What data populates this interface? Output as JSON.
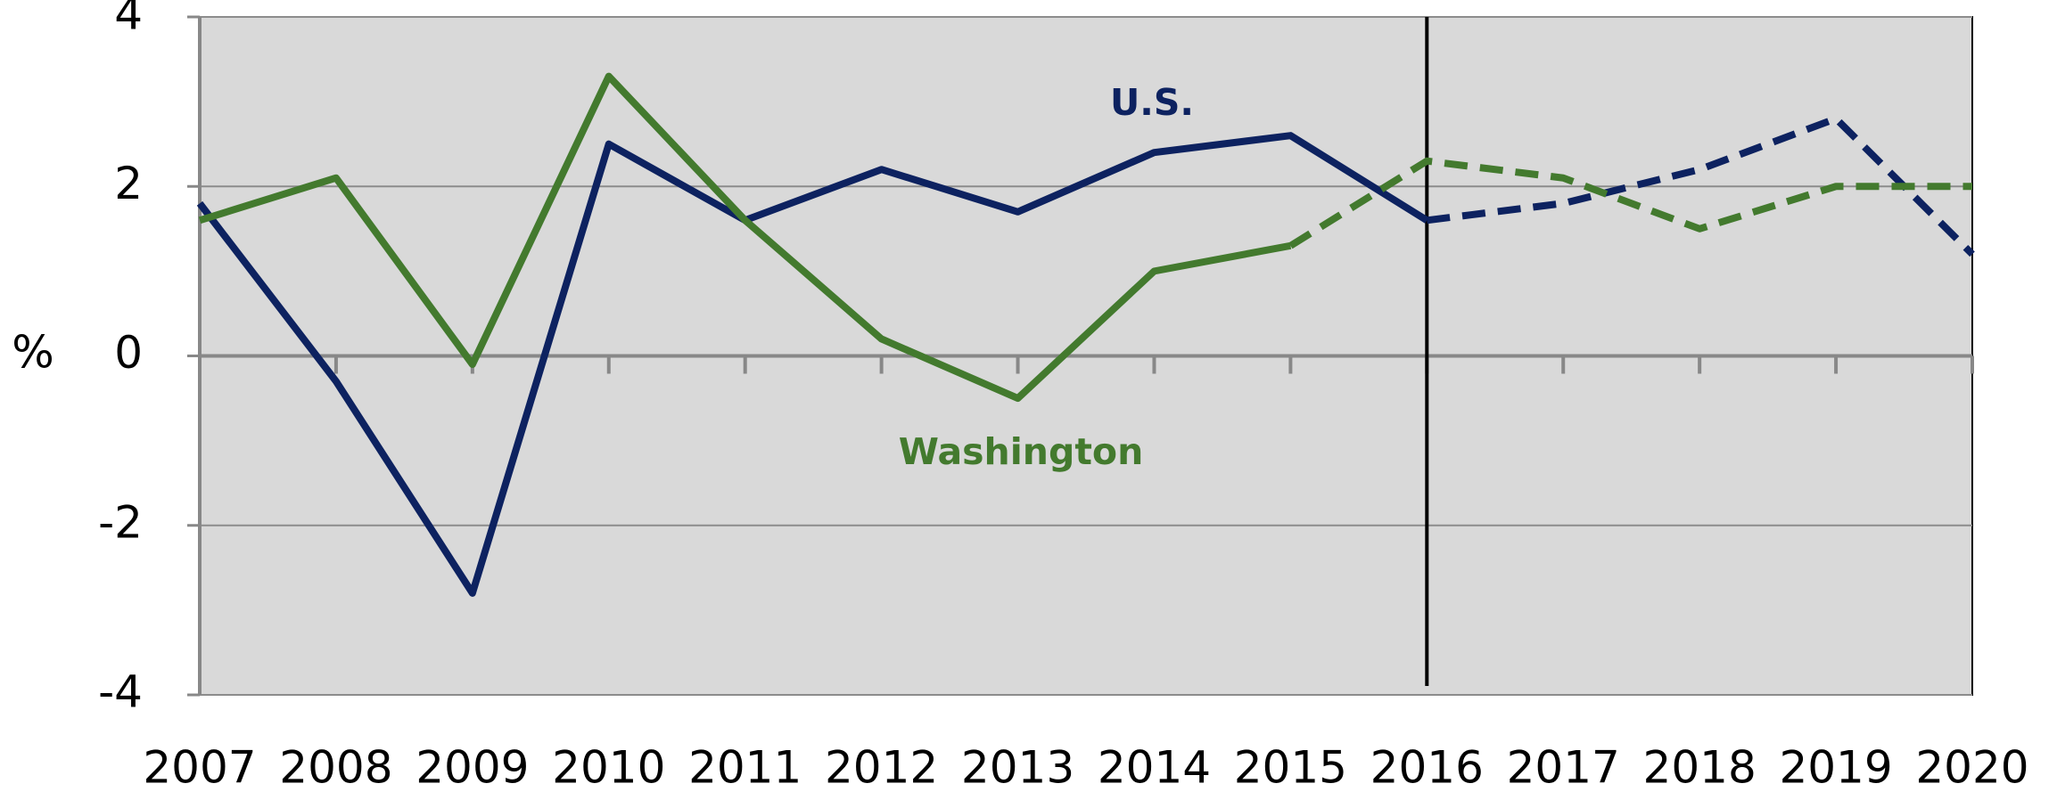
{
  "chart_data": {
    "type": "line",
    "categories": [
      "2007",
      "2008",
      "2009",
      "2010",
      "2011",
      "2012",
      "2013",
      "2014",
      "2015",
      "2016",
      "2017",
      "2018",
      "2019",
      "2020"
    ],
    "y_label": "%",
    "ylim": [
      -4,
      4
    ],
    "yticks": [
      -4,
      -2,
      0,
      2,
      4
    ],
    "grid": true,
    "divider": "2016",
    "series": [
      {
        "name": "U.S.",
        "color": "#0d2260",
        "dash_start": "2016",
        "values": [
          1.8,
          -0.3,
          -2.8,
          2.5,
          1.6,
          2.2,
          1.7,
          2.4,
          2.6,
          1.6,
          1.8,
          2.2,
          2.8,
          1.2
        ]
      },
      {
        "name": "Washington",
        "color": "#437a2e",
        "dash_start": "2015",
        "values": [
          1.6,
          2.1,
          -0.1,
          3.3,
          1.6,
          0.2,
          -0.5,
          1.0,
          1.3,
          2.3,
          2.1,
          1.5,
          2.0,
          2.0
        ]
      }
    ]
  }
}
